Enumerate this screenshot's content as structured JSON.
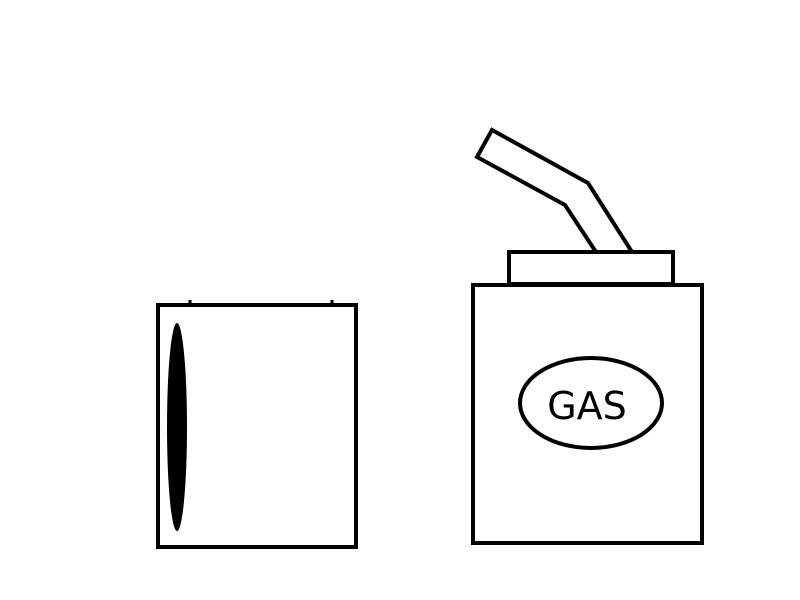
{
  "gas_can": {
    "label": "GAS"
  },
  "colors": {
    "stroke": "#000000",
    "fill": "#ffffff",
    "background": "#ffffff"
  }
}
